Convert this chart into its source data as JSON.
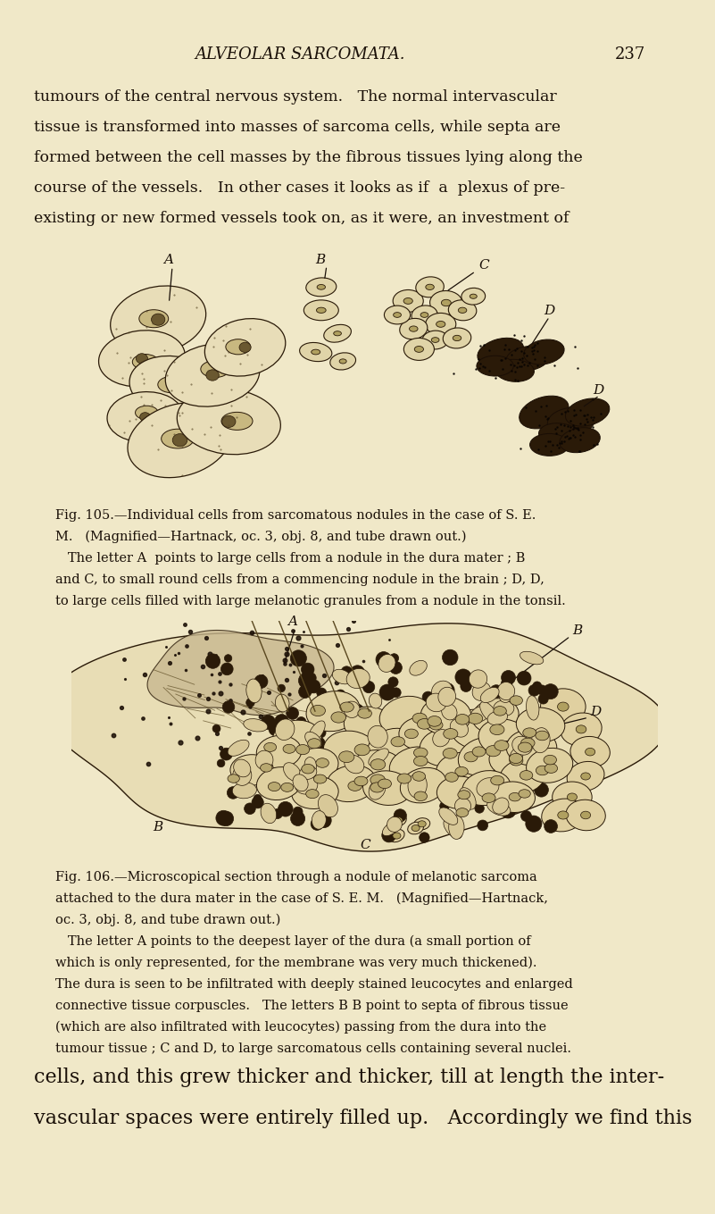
{
  "bg_color": "#f0e8c8",
  "page_width": 8.01,
  "page_height": 13.59,
  "dpi": 100,
  "text_color": "#1a1008",
  "header_title": "ALVEOLAR SARCOMATA.",
  "header_page": "237",
  "body_text_lines": [
    "tumours of the central nervous system.   The normal intervascular",
    "tissue is transformed into masses of sarcoma cells, while septa are",
    "formed between the cell masses by the fibrous tissues lying along the",
    "course of the vessels.   In other cases it looks as if  a  plexus of pre-",
    "existing or new formed vessels took on, as it were, an investment of"
  ],
  "fig105_caption_lines": [
    "Fig. 105.—Individual cells from sarcomatous nodules in the case of S. E.",
    "M.   (Magnified—Hartnack, oc. 3, obj. 8, and tube drawn out.)",
    "   The letter A  points to large cells from a nodule in the dura mater ; B",
    "and C, to small round cells from a commencing nodule in the brain ; D, D,",
    "to large cells filled with large melanotic granules from a nodule in the tonsil."
  ],
  "fig106_caption_lines": [
    "Fig. 106.—Microscopical section through a nodule of melanotic sarcoma",
    "attached to the dura mater in the case of S. E. M.   (Magnified—Hartnack,",
    "oc. 3, obj. 8, and tube drawn out.)",
    "   The letter A points to the deepest layer of the dura (a small portion of",
    "which is only represented, for the membrane was very much thickened).",
    "The dura is seen to be infiltrated with deeply stained leucocytes and enlarged",
    "connective tissue corpuscles.   The letters B B point to septa of fibrous tissue",
    "(which are also infiltrated with leucocytes) passing from the dura into the",
    "tumour tissue ; C and D, to large sarcomatous cells containing several nuclei."
  ],
  "bottom_text_lines": [
    "cells, and this grew thicker and thicker, till at length the inter-",
    "vascular spaces were entirely filled up.   Accordingly we find this"
  ]
}
